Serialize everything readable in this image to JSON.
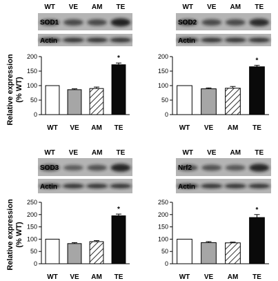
{
  "figure": {
    "y_axis_label_line1": "Relative expression",
    "y_axis_label_line2": "(% WT)"
  },
  "chart_data": [
    {
      "type": "bar",
      "panel": "SOD1",
      "blot_label": "SOD1",
      "loading_label": "Actin",
      "categories": [
        "WT",
        "VE",
        "AM",
        "TE"
      ],
      "values": [
        100,
        86,
        90,
        172
      ],
      "errors": [
        0,
        3,
        5,
        6
      ],
      "significance": [
        "",
        "",
        "",
        "*"
      ],
      "ylim": [
        0,
        200
      ],
      "yticks": [
        0,
        50,
        100,
        150,
        200
      ],
      "bar_styles": [
        "white",
        "gray",
        "hatched",
        "black"
      ],
      "blot_band_intensity": {
        "target": [
          0.55,
          0.55,
          0.55,
          0.95
        ],
        "actin": [
          0.9,
          0.9,
          0.9,
          0.9
        ]
      }
    },
    {
      "type": "bar",
      "panel": "SOD2",
      "blot_label": "SOD2",
      "loading_label": "Actin",
      "categories": [
        "WT",
        "VE",
        "AM",
        "TE"
      ],
      "values": [
        100,
        89,
        91,
        165
      ],
      "errors": [
        0,
        3,
        6,
        5
      ],
      "significance": [
        "",
        "",
        "",
        "*"
      ],
      "ylim": [
        0,
        200
      ],
      "yticks": [
        0,
        50,
        100,
        150,
        200
      ],
      "bar_styles": [
        "white",
        "gray",
        "hatched",
        "black"
      ],
      "blot_band_intensity": {
        "target": [
          0.6,
          0.55,
          0.55,
          0.85
        ],
        "actin": [
          0.9,
          0.9,
          0.9,
          0.9
        ]
      }
    },
    {
      "type": "bar",
      "panel": "SOD3",
      "blot_label": "SOD3",
      "loading_label": "Actin",
      "categories": [
        "WT",
        "VE",
        "AM",
        "TE"
      ],
      "values": [
        100,
        82,
        90,
        195
      ],
      "errors": [
        0,
        4,
        4,
        7
      ],
      "significance": [
        "",
        "",
        "",
        "*"
      ],
      "ylim": [
        0,
        250
      ],
      "yticks": [
        0,
        50,
        100,
        150,
        200,
        250
      ],
      "bar_styles": [
        "white",
        "gray",
        "hatched",
        "black"
      ],
      "blot_band_intensity": {
        "target": [
          0.6,
          0.35,
          0.45,
          0.9
        ],
        "actin": [
          0.9,
          0.9,
          0.9,
          0.9
        ]
      }
    },
    {
      "type": "bar",
      "panel": "Nrf2",
      "blot_label": "Nrf2",
      "loading_label": "Actin",
      "categories": [
        "WT",
        "VE",
        "AM",
        "TE"
      ],
      "values": [
        100,
        86,
        85,
        188
      ],
      "errors": [
        0,
        4,
        3,
        12
      ],
      "significance": [
        "",
        "",
        "",
        "*"
      ],
      "ylim": [
        0,
        250
      ],
      "yticks": [
        0,
        50,
        100,
        150,
        200,
        250
      ],
      "bar_styles": [
        "white",
        "gray",
        "hatched",
        "black"
      ],
      "blot_band_intensity": {
        "target": [
          0.5,
          0.45,
          0.4,
          0.9
        ],
        "actin": [
          0.9,
          0.9,
          0.9,
          0.9
        ]
      }
    }
  ],
  "colors": {
    "blot_background": "#b4b4b4",
    "band": "#161616",
    "bar_gray": "#a6a6a6",
    "bar_black": "#0a0a0a",
    "axis": "#000000"
  }
}
